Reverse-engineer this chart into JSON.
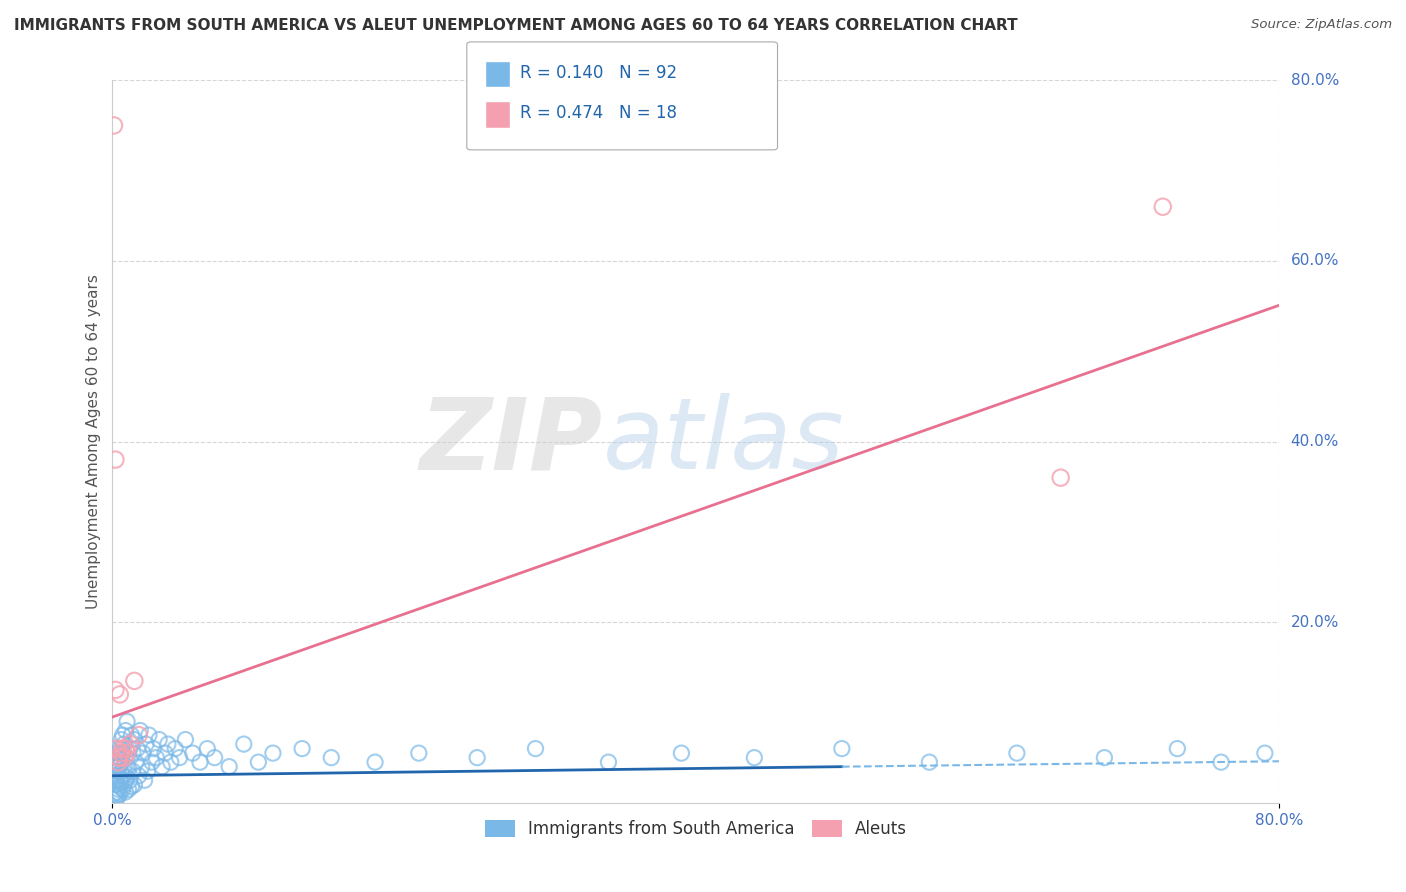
{
  "title": "IMMIGRANTS FROM SOUTH AMERICA VS ALEUT UNEMPLOYMENT AMONG AGES 60 TO 64 YEARS CORRELATION CHART",
  "source": "Source: ZipAtlas.com",
  "ylabel": "Unemployment Among Ages 60 to 64 years",
  "xlim": [
    0.0,
    0.8
  ],
  "ylim": [
    0.0,
    0.8
  ],
  "xticks": [
    0.0,
    0.8
  ],
  "yticks": [
    0.2,
    0.4,
    0.6,
    0.8
  ],
  "xtick_labels": [
    "0.0%",
    "80.0%"
  ],
  "ytick_labels_right": [
    "20.0%",
    "40.0%",
    "60.0%",
    "80.0%"
  ],
  "series1_color": "#7ab8e8",
  "series2_color": "#f4a0b0",
  "series1_label": "Immigrants from South America",
  "series2_label": "Aleuts",
  "R1": 0.14,
  "N1": 92,
  "R2": 0.474,
  "N2": 18,
  "legend_text_color": "#2166ac",
  "watermark_zip": "ZIP",
  "watermark_atlas": "atlas",
  "background_color": "#ffffff",
  "grid_color": "#cccccc",
  "series1_x": [
    0.001,
    0.001,
    0.002,
    0.002,
    0.002,
    0.003,
    0.003,
    0.003,
    0.003,
    0.003,
    0.004,
    0.004,
    0.004,
    0.004,
    0.004,
    0.005,
    0.005,
    0.005,
    0.005,
    0.005,
    0.006,
    0.006,
    0.006,
    0.006,
    0.007,
    0.007,
    0.007,
    0.007,
    0.008,
    0.008,
    0.008,
    0.009,
    0.009,
    0.009,
    0.01,
    0.01,
    0.01,
    0.011,
    0.011,
    0.012,
    0.012,
    0.013,
    0.013,
    0.014,
    0.014,
    0.015,
    0.015,
    0.016,
    0.017,
    0.018,
    0.019,
    0.02,
    0.021,
    0.022,
    0.023,
    0.024,
    0.025,
    0.027,
    0.028,
    0.03,
    0.032,
    0.034,
    0.036,
    0.038,
    0.04,
    0.043,
    0.046,
    0.05,
    0.055,
    0.06,
    0.065,
    0.07,
    0.08,
    0.09,
    0.1,
    0.11,
    0.13,
    0.15,
    0.18,
    0.21,
    0.25,
    0.29,
    0.34,
    0.39,
    0.44,
    0.5,
    0.56,
    0.62,
    0.68,
    0.73,
    0.76,
    0.79
  ],
  "series1_y": [
    0.03,
    0.01,
    0.025,
    0.008,
    0.045,
    0.02,
    0.035,
    0.012,
    0.05,
    0.005,
    0.03,
    0.055,
    0.015,
    0.04,
    0.008,
    0.025,
    0.06,
    0.018,
    0.042,
    0.01,
    0.035,
    0.07,
    0.022,
    0.048,
    0.015,
    0.055,
    0.03,
    0.075,
    0.02,
    0.065,
    0.04,
    0.025,
    0.08,
    0.012,
    0.05,
    0.028,
    0.09,
    0.038,
    0.015,
    0.06,
    0.025,
    0.075,
    0.018,
    0.055,
    0.035,
    0.07,
    0.02,
    0.045,
    0.06,
    0.03,
    0.08,
    0.04,
    0.055,
    0.025,
    0.065,
    0.035,
    0.075,
    0.045,
    0.06,
    0.05,
    0.07,
    0.04,
    0.055,
    0.065,
    0.045,
    0.06,
    0.05,
    0.07,
    0.055,
    0.045,
    0.06,
    0.05,
    0.04,
    0.065,
    0.045,
    0.055,
    0.06,
    0.05,
    0.045,
    0.055,
    0.05,
    0.06,
    0.045,
    0.055,
    0.05,
    0.06,
    0.045,
    0.055,
    0.05,
    0.06,
    0.045,
    0.055
  ],
  "series2_x": [
    0.001,
    0.002,
    0.003,
    0.004,
    0.005,
    0.005,
    0.006,
    0.007,
    0.008,
    0.009,
    0.01,
    0.012,
    0.015,
    0.018,
    0.65,
    0.72,
    0.002,
    0.004
  ],
  "series2_y": [
    0.75,
    0.125,
    0.06,
    0.045,
    0.12,
    0.05,
    0.055,
    0.06,
    0.05,
    0.06,
    0.055,
    0.065,
    0.135,
    0.075,
    0.36,
    0.66,
    0.38,
    0.05
  ],
  "trend1_intercept": 0.03,
  "trend1_slope": 0.02,
  "trend2_intercept": 0.095,
  "trend2_slope": 0.57,
  "trend1_solid_end": 0.5,
  "trend1_dashed_start": 0.5
}
